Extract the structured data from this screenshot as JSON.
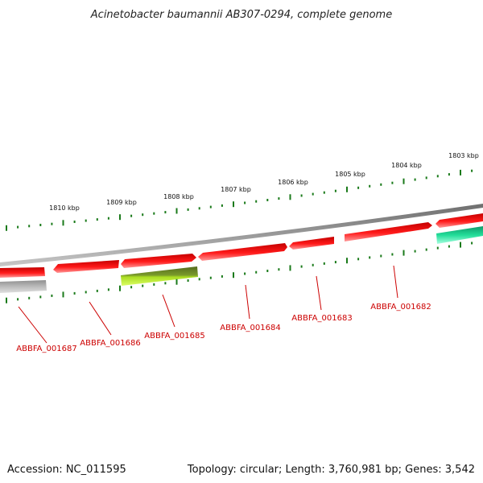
{
  "title": "Acinetobacter baumannii AB307-0294, complete genome",
  "footer": {
    "accession": "Accession: NC_011595",
    "summary": "Topology: circular; Length: 3,760,981 bp; Genes: 3,542"
  },
  "ruler": {
    "labels": [
      "1803 kbp",
      "1804 kbp",
      "1805 kbp",
      "1806 kbp",
      "1807 kbp",
      "1808 kbp",
      "1809 kbp",
      "1810 kbp"
    ],
    "color": "#1a7a1a"
  },
  "gene_labels": [
    "ABBFA_001682",
    "ABBFA_001683",
    "ABBFA_001684",
    "ABBFA_001685",
    "ABBFA_001686",
    "ABBFA_001687"
  ],
  "colors": {
    "backbone": "#8a8a8a",
    "gene_red": "#ff1a1a",
    "gene_red_dark": "#c40000",
    "gene_red_light": "#ff8a8a",
    "gene_teal": "#22dd99",
    "gene_teal_light": "#9affd6",
    "gene_olive": "#5a7a1a",
    "gene_lime": "#ccff44",
    "gene_gray": "#aaaaaa",
    "label_red": "#cc0000"
  }
}
